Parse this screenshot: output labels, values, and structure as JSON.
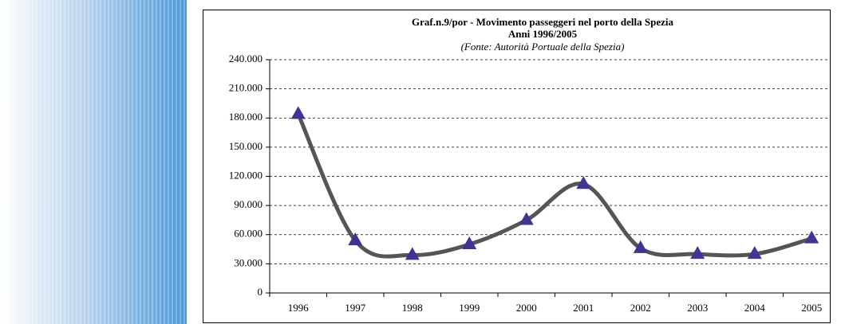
{
  "chart_data": {
    "type": "line",
    "title": "Graf.n.9/por - Movimento passeggeri nel porto della Spezia",
    "subtitle": "Anni 1996/2005",
    "source": "(Fonte: Autorità Portuale della Spezia)",
    "categories": [
      "1996",
      "1997",
      "1998",
      "1999",
      "2000",
      "2001",
      "2002",
      "2003",
      "2004",
      "2005"
    ],
    "series": [
      {
        "color": "#555555",
        "marker_color": "#3f3592",
        "values": [
          184000,
          54000,
          39000,
          50000,
          75000,
          112000,
          46000,
          40000,
          40000,
          56000
        ]
      }
    ],
    "ylim": [
      0,
      240000
    ],
    "yticks": [
      0,
      {
        "value": 30000,
        "label": "30.000"
      },
      {
        "value": 60000,
        "label": "60.000"
      },
      {
        "value": 90000,
        "label": "90.000"
      },
      {
        "value": 120000,
        "label": "120.000"
      },
      {
        "value": 150000,
        "label": "150.000"
      },
      {
        "value": 180000,
        "label": "180.000"
      },
      {
        "value": 210000,
        "label": "210.000"
      },
      {
        "value": 240000,
        "label": "240.000"
      }
    ],
    "grid": true,
    "smooth": true
  }
}
